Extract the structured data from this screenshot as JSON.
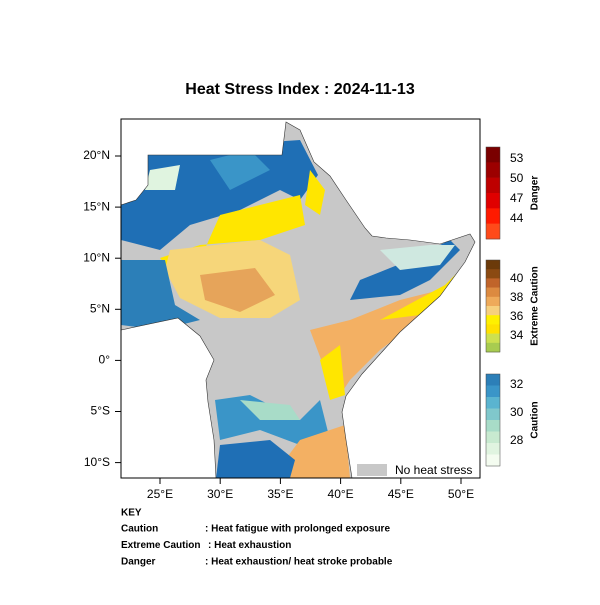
{
  "title": "Heat Stress Index : 2024-11-13",
  "map": {
    "lat_labels": [
      "20°N",
      "15°N",
      "10°N",
      "5°N",
      "0°",
      "5°S",
      "10°S"
    ],
    "lon_labels": [
      "25°E",
      "30°E",
      "35°E",
      "40°E",
      "45°E",
      "50°E"
    ],
    "no_stress_label": "No heat stress"
  },
  "colorbars": [
    {
      "label": "Danger",
      "ticks": [
        "53",
        "50",
        "47",
        "44"
      ]
    },
    {
      "label": "Extreme Caution",
      "ticks": [
        "40",
        "38",
        "36",
        "34"
      ]
    },
    {
      "label": "Caution",
      "ticks": [
        "32",
        "30",
        "28"
      ]
    }
  ],
  "key": {
    "heading": "KEY",
    "rows": [
      [
        "Caution",
        ": Heat fatigue with prolonged exposure"
      ],
      [
        "Extreme Caution",
        ": Heat exhaustion"
      ],
      [
        "Danger",
        ": Heat exhaustion/ heat stroke probable"
      ]
    ]
  }
}
